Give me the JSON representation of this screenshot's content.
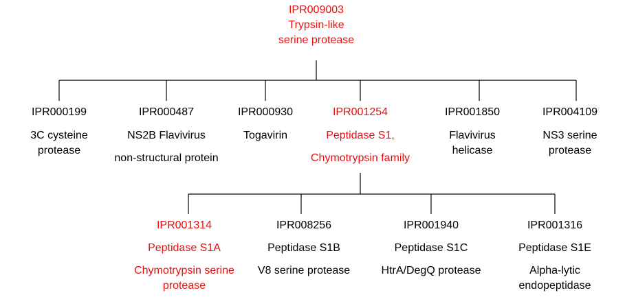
{
  "colors": {
    "highlight": "#e8100f",
    "text": "#000000",
    "line": "#000000"
  },
  "root": {
    "id": "IPR009003",
    "lines": [
      "Trypsin-like",
      "serine protease"
    ],
    "highlight": true
  },
  "level1": [
    {
      "id": "IPR000199",
      "lines": [
        "3C cysteine",
        "protease"
      ],
      "highlight": false
    },
    {
      "id": "IPR000487",
      "lines": [
        "NS2B Flavivirus",
        "non-structural protein"
      ],
      "highlight": false
    },
    {
      "id": "IPR000930",
      "lines": [
        "Togavirin"
      ],
      "highlight": false
    },
    {
      "id": "IPR001254",
      "lines": [
        "Peptidase S1,",
        "Chymotrypsin family"
      ],
      "highlight": true
    },
    {
      "id": "IPR001850",
      "lines": [
        "Flavivirus",
        "helicase"
      ],
      "highlight": false
    },
    {
      "id": "IPR004109",
      "lines": [
        "NS3 serine",
        "protease"
      ],
      "highlight": false
    }
  ],
  "level2": [
    {
      "id": "IPR001314",
      "lines": [
        "Peptidase S1A",
        "Chymotrypsin serine",
        "protease"
      ],
      "highlight": true
    },
    {
      "id": "IPR008256",
      "lines": [
        "Peptidase S1B",
        "V8 serine protease"
      ],
      "highlight": false
    },
    {
      "id": "IPR001940",
      "lines": [
        "Peptidase S1C",
        "HtrA/DegQ protease"
      ],
      "highlight": false
    },
    {
      "id": "IPR001316",
      "lines": [
        "Peptidase S1E",
        "Alpha-lytic",
        "endopeptidase"
      ],
      "highlight": false
    }
  ]
}
